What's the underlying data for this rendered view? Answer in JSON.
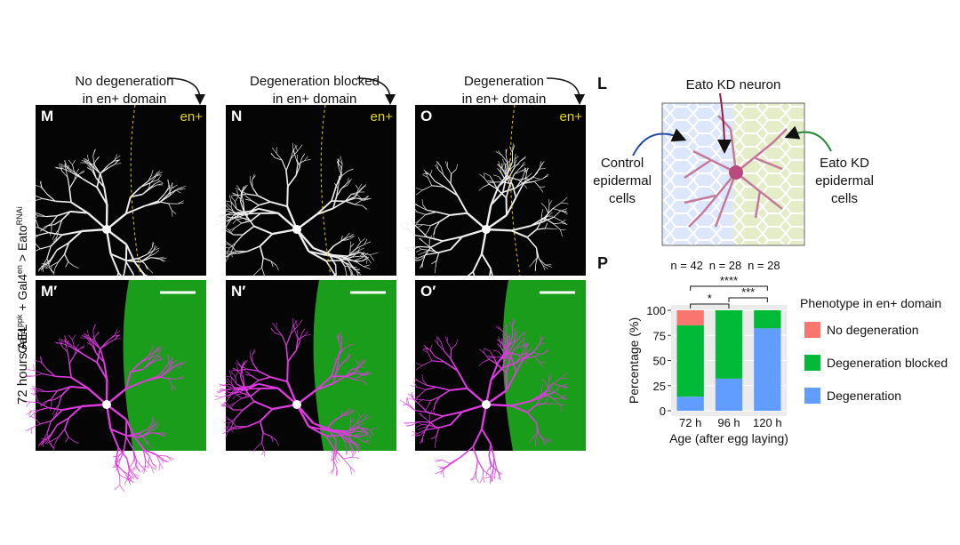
{
  "figure": {
    "captions": [
      [
        "No degeneration",
        "in en+ domain"
      ],
      [
        "Degeneration blocked",
        "in en+ domain"
      ],
      [
        "Degeneration",
        "in en+ domain"
      ]
    ],
    "panel_labels": [
      "M",
      "N",
      "O"
    ],
    "panel_labels_merge": [
      "M′",
      "N′",
      "O′"
    ],
    "domain_label": "en+",
    "genotype": [
      "Gal4",
      "ppk",
      " + Gal4",
      "en",
      " > Eato",
      "RNAi"
    ],
    "time_label": "72 hours AEL",
    "diagram": {
      "label": "L",
      "neuron": "Eato KD neuron",
      "left": [
        "Control",
        "epidermal",
        "cells"
      ],
      "right": [
        "Eato KD",
        "epidermal",
        "cells"
      ]
    }
  },
  "chart_data": {
    "type": "bar",
    "stacked": true,
    "label": "P",
    "n_labels": [
      "n = 42",
      "n = 28",
      "n = 28"
    ],
    "annotations": [
      "*",
      "****",
      "***"
    ],
    "categories": [
      "72 h",
      "96 h",
      "120 h"
    ],
    "ylabel": "Percentage (%)",
    "xlabel": "Age (after egg laying)",
    "ylim": [
      0,
      100
    ],
    "yticks": [
      0,
      25,
      50,
      75,
      100
    ],
    "grid": true,
    "legend_title": "Phenotype in en+ domain",
    "series": [
      {
        "name": "No degeneration",
        "color": "#f8766d",
        "values": [
          15,
          0,
          0
        ]
      },
      {
        "name": "Degeneration blocked",
        "color": "#00ba38",
        "values": [
          71,
          68,
          18
        ]
      },
      {
        "name": "Degeneration",
        "color": "#619cff",
        "values": [
          14,
          32,
          82
        ]
      }
    ]
  }
}
